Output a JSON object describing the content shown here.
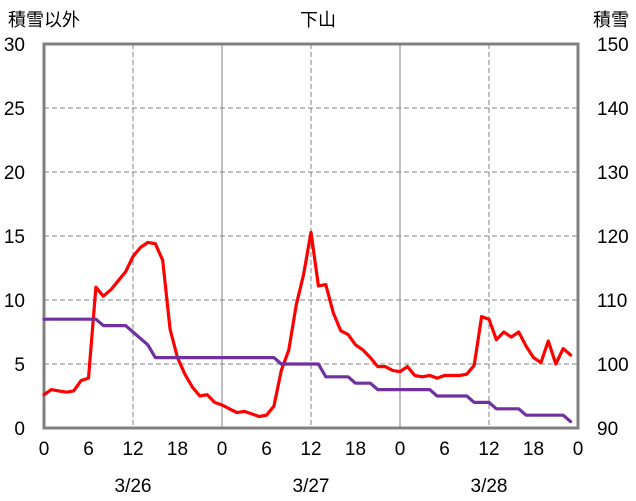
{
  "chart_data": {
    "type": "line",
    "title": "下山",
    "ylabel": "積雪以外",
    "y2label": "積雪",
    "ylim": [
      0,
      30
    ],
    "y2lim": [
      90,
      150
    ],
    "yticks": [
      "0",
      "5",
      "10",
      "15",
      "20",
      "25",
      "30"
    ],
    "y2ticks": [
      "90",
      "100",
      "110",
      "120",
      "130",
      "140",
      "150"
    ],
    "xticks": [
      "0",
      "6",
      "12",
      "18",
      "0",
      "6",
      "12",
      "18",
      "0",
      "6",
      "12",
      "18",
      "0"
    ],
    "dates": [
      "3/26",
      "3/27",
      "3/28"
    ],
    "hours": [
      0,
      1,
      2,
      3,
      4,
      5,
      6,
      7,
      8,
      9,
      10,
      11,
      12,
      13,
      14,
      15,
      16,
      17,
      18,
      19,
      20,
      21,
      22,
      23
    ],
    "grid": true,
    "series": [
      {
        "axis": "left",
        "color": "#ff0000",
        "values_by_date": [
          [
            2.6,
            3.0,
            2.9,
            2.8,
            2.9,
            3.7,
            3.9,
            11.0,
            10.3,
            10.8,
            11.5,
            12.2,
            13.4,
            14.1,
            14.5,
            14.4,
            13.1,
            7.7,
            5.5,
            4.2,
            3.2,
            2.5,
            2.6,
            2.0
          ],
          [
            1.8,
            1.5,
            1.2,
            1.3,
            1.1,
            0.9,
            1.0,
            1.7,
            4.5,
            6.1,
            9.6,
            12.0,
            15.3,
            11.1,
            11.2,
            9.0,
            7.6,
            7.3,
            6.5,
            6.1,
            5.5,
            4.8,
            4.8,
            4.5
          ],
          [
            4.4,
            4.8,
            4.1,
            4.0,
            4.1,
            3.9,
            4.1,
            4.1,
            4.1,
            4.2,
            4.9,
            8.7,
            8.5,
            6.9,
            7.5,
            7.1,
            7.5,
            6.4,
            5.5,
            5.1,
            6.8,
            5.0,
            6.2,
            5.7
          ]
        ]
      },
      {
        "axis": "right",
        "color": "#7030a0",
        "values_by_date": [
          [
            107,
            107,
            107,
            107,
            107,
            107,
            107,
            107,
            106,
            106,
            106,
            106,
            105,
            104,
            103,
            101,
            101,
            101,
            101,
            101,
            101,
            101,
            101,
            101
          ],
          [
            101,
            101,
            101,
            101,
            101,
            101,
            101,
            101,
            100,
            100,
            100,
            100,
            100,
            100,
            98,
            98,
            98,
            98,
            97,
            97,
            97,
            96,
            96,
            96
          ],
          [
            96,
            96,
            96,
            96,
            96,
            95,
            95,
            95,
            95,
            95,
            94,
            94,
            94,
            93,
            93,
            93,
            93,
            92,
            92,
            92,
            92,
            92,
            92,
            91
          ]
        ]
      }
    ]
  },
  "colors": {
    "grid": "#808080",
    "frame": "#808080"
  }
}
